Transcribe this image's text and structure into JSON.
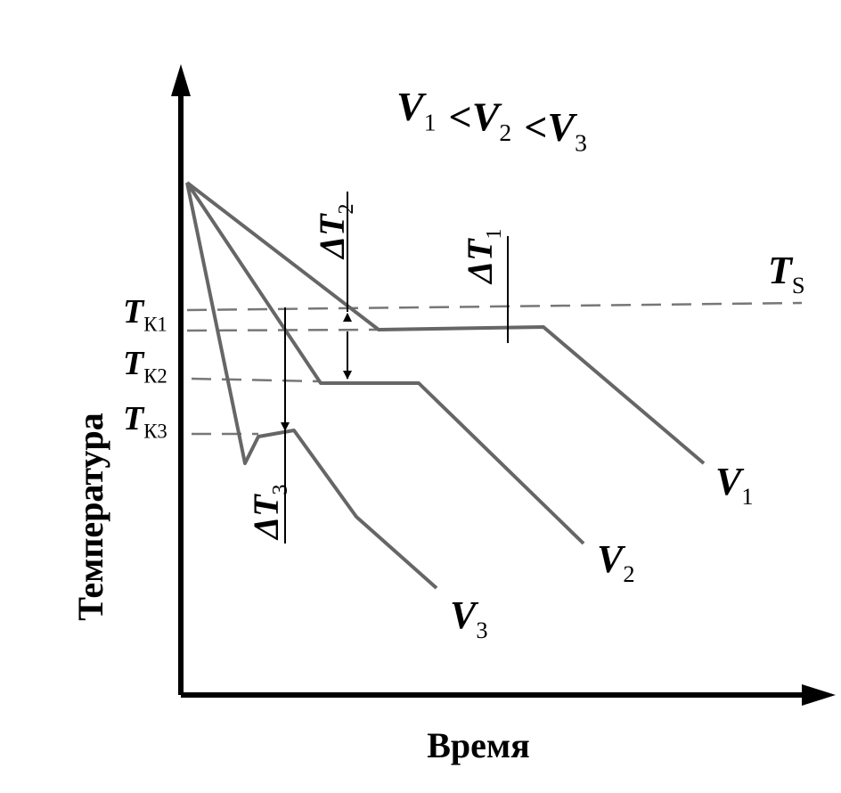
{
  "axes": {
    "y_label": "Температура",
    "x_label": "Время"
  },
  "condition": {
    "items": [
      {
        "main": "V",
        "sub": "1"
      },
      {
        "main": "V",
        "sub": "2"
      },
      {
        "main": "V",
        "sub": "3"
      }
    ],
    "relation": "<"
  },
  "levels": {
    "ts": {
      "main": "T",
      "sub": "S"
    },
    "tk1": {
      "main": "T",
      "sub": "К1"
    },
    "tk2": {
      "main": "T",
      "sub": "К2"
    },
    "tk3": {
      "main": "T",
      "sub": "К3"
    }
  },
  "deltas": [
    {
      "main": "ΔT",
      "sub": "1"
    },
    {
      "main": "ΔT",
      "sub": "2"
    },
    {
      "main": "ΔT",
      "sub": "3"
    }
  ],
  "curves": [
    {
      "main": "V",
      "sub": "1"
    },
    {
      "main": "V",
      "sub": "2"
    },
    {
      "main": "V",
      "sub": "3"
    }
  ]
}
